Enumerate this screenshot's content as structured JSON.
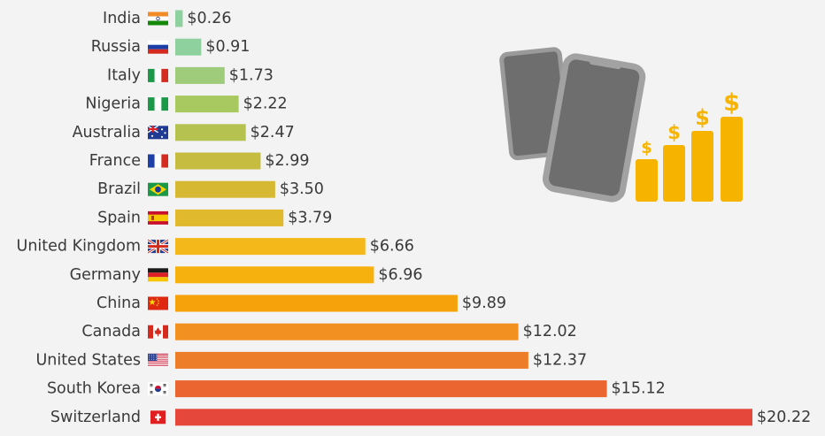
{
  "chart_data": {
    "type": "bar",
    "orientation": "horizontal",
    "title": "",
    "xlabel": "",
    "ylabel": "",
    "categories": [
      "India",
      "Russia",
      "Italy",
      "Nigeria",
      "Australia",
      "France",
      "Brazil",
      "Spain",
      "United Kingdom",
      "Germany",
      "China",
      "Canada",
      "United States",
      "South Korea",
      "Switzerland"
    ],
    "values": [
      0.26,
      0.91,
      1.73,
      2.22,
      2.47,
      2.99,
      3.5,
      3.79,
      6.66,
      6.96,
      9.89,
      12.02,
      12.37,
      15.12,
      20.22
    ],
    "value_labels": [
      "$0.26",
      "$0.91",
      "$1.73",
      "$2.22",
      "$2.47",
      "$2.99",
      "$3.50",
      "$3.79",
      "$6.66",
      "$6.96",
      "$9.89",
      "$12.02",
      "$12.37",
      "$15.12",
      "$20.22"
    ],
    "colors": [
      "#8fd19e",
      "#8fd19e",
      "#9fcc7a",
      "#a8c95f",
      "#b5c250",
      "#c6bd40",
      "#d6b833",
      "#e0b92c",
      "#f5b81a",
      "#f7b10f",
      "#f6a20b",
      "#f39022",
      "#ee7d2a",
      "#ea6530",
      "#e5473a"
    ],
    "flags": [
      "india-flag",
      "russia-flag",
      "italy-flag",
      "nigeria-flag",
      "australia-flag",
      "france-flag",
      "brazil-flag",
      "spain-flag",
      "uk-flag",
      "germany-flag",
      "china-flag",
      "canada-flag",
      "usa-flag",
      "south-korea-flag",
      "switzerland-flag"
    ],
    "xlim": [
      0,
      20.22
    ],
    "grid": false,
    "legend": "none"
  },
  "illustration": {
    "icons": [
      "smartphone-back-icon",
      "smartphone-front-icon",
      "rising-dollar-bars-icon"
    ],
    "dollar_symbol": "$"
  }
}
